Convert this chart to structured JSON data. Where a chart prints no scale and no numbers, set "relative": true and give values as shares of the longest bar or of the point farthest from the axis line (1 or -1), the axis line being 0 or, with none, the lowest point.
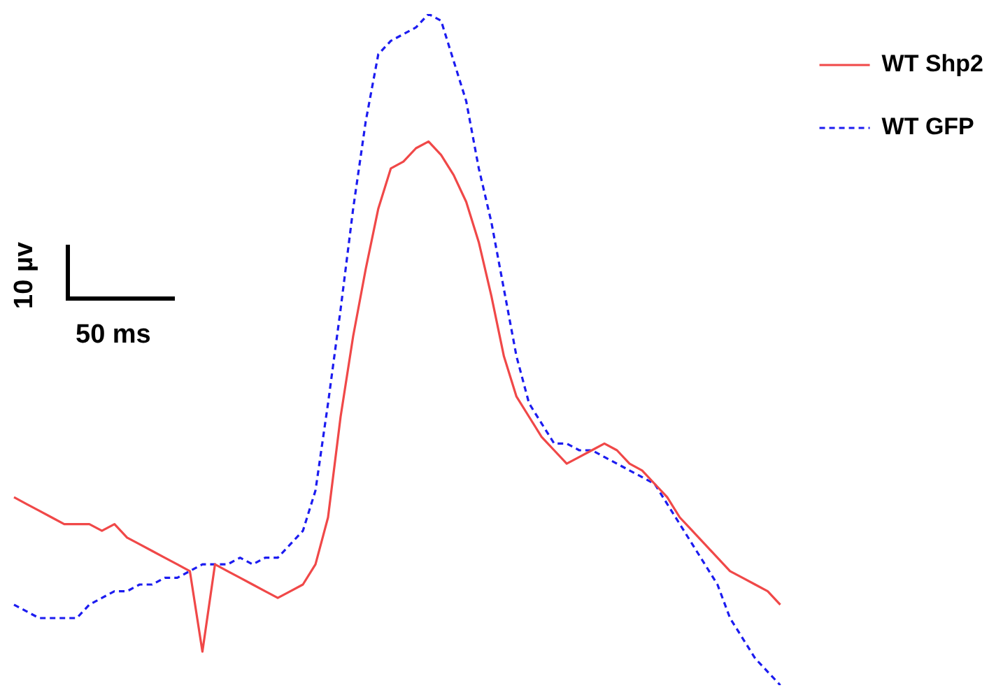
{
  "chart_data": {
    "type": "line",
    "relative": true,
    "legend": "top right",
    "marker": "none",
    "annotations": [
      "10 µv",
      "50 ms"
    ],
    "categories": [
      null,
      null,
      null,
      null,
      null,
      null,
      null,
      null,
      null,
      null,
      null,
      null,
      null,
      null,
      null,
      null,
      null,
      null,
      null,
      null,
      null,
      null,
      null,
      null,
      null,
      null,
      null,
      null,
      null,
      null,
      null,
      null,
      null,
      null,
      null,
      null,
      null,
      null,
      null,
      null,
      null,
      null,
      null,
      null,
      null,
      null,
      null,
      null,
      null,
      null,
      null,
      null,
      null,
      null,
      null,
      null,
      null,
      null,
      null,
      null,
      null,
      null
    ],
    "series": [
      {
        "name": "WT Shp2",
        "color": "#f04848",
        "line_style": "solid",
        "values": [
          0.28,
          0.27,
          0.26,
          0.25,
          0.24,
          0.24,
          0.24,
          0.23,
          0.24,
          0.22,
          0.21,
          0.2,
          0.19,
          0.18,
          0.17,
          0.05,
          0.18,
          0.17,
          0.16,
          0.15,
          0.14,
          0.13,
          0.14,
          0.15,
          0.18,
          0.25,
          0.4,
          0.52,
          0.62,
          0.71,
          0.77,
          0.78,
          0.8,
          0.81,
          0.79,
          0.76,
          0.72,
          0.66,
          0.58,
          0.49,
          0.43,
          0.4,
          0.37,
          0.35,
          0.33,
          0.34,
          0.35,
          0.36,
          0.35,
          0.33,
          0.32,
          0.3,
          0.28,
          0.25,
          0.23,
          0.21,
          0.19,
          0.17,
          0.16,
          0.15,
          0.14,
          0.12
        ]
      },
      {
        "name": "WT GFP",
        "color": "#1c1cf0",
        "line_style": "dashed",
        "values": [
          0.12,
          0.11,
          0.1,
          0.1,
          0.1,
          0.1,
          0.12,
          0.13,
          0.14,
          0.14,
          0.15,
          0.15,
          0.16,
          0.16,
          0.17,
          0.18,
          0.18,
          0.18,
          0.19,
          0.18,
          0.19,
          0.19,
          0.21,
          0.23,
          0.29,
          0.42,
          0.56,
          0.71,
          0.84,
          0.94,
          0.96,
          0.97,
          0.98,
          1,
          0.99,
          0.93,
          0.87,
          0.77,
          0.69,
          0.59,
          0.49,
          0.42,
          0.39,
          0.36,
          0.36,
          0.35,
          0.35,
          0.34,
          0.33,
          0.32,
          0.31,
          0.3,
          0.27,
          0.24,
          0.21,
          0.18,
          0.15,
          0.1,
          0.07,
          0.04,
          0.02,
          0
        ]
      }
    ]
  }
}
